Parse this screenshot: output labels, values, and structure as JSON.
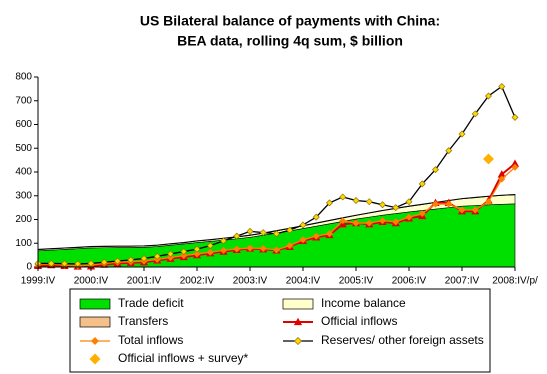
{
  "chart_data": {
    "type": "combo",
    "title": "US Bilateral balance of payments with China:",
    "subtitle": "BEA data, rolling 4q sum, $ billion",
    "categories": [
      "1999:IV",
      null,
      null,
      null,
      "2000:IV",
      null,
      null,
      null,
      "2001:IV",
      null,
      null,
      null,
      "2002:IV",
      null,
      null,
      null,
      "2003:IV",
      null,
      null,
      null,
      "2004:IV",
      null,
      null,
      null,
      "2005:IV",
      null,
      null,
      null,
      "2006:IV",
      null,
      null,
      null,
      "2007:IV",
      null,
      null,
      null,
      "2008:IV/p/"
    ],
    "ylim": [
      0,
      800
    ],
    "yticks": [
      0,
      100,
      200,
      300,
      400,
      500,
      600,
      700,
      800
    ],
    "series": [
      {
        "name": "Trade deficit",
        "kind": "area",
        "color": "#00e000",
        "values": [
          68,
          71,
          74,
          77,
          80,
          81,
          82,
          82,
          83,
          86,
          92,
          97,
          103,
          108,
          113,
          119,
          125,
          134,
          143,
          152,
          162,
          172,
          182,
          192,
          202,
          210,
          218,
          225,
          232,
          238,
          244,
          250,
          256,
          259,
          262,
          264,
          266
        ]
      },
      {
        "name": "Income balance",
        "kind": "area",
        "color": "#ffffcc",
        "values": [
          5,
          5,
          5,
          5,
          5,
          5,
          5,
          5,
          5,
          5,
          5,
          5,
          6,
          6,
          7,
          7,
          8,
          8,
          9,
          10,
          11,
          12,
          13,
          14,
          15,
          17,
          19,
          21,
          23,
          25,
          27,
          29,
          31,
          33,
          35,
          37,
          38
        ]
      },
      {
        "name": "Transfers",
        "kind": "area",
        "color": "#f5c08a",
        "values": [
          2,
          2,
          2,
          2,
          2,
          2,
          2,
          2,
          2,
          2,
          2,
          2,
          2,
          2,
          2,
          2,
          2,
          2,
          2,
          2,
          2,
          2,
          2,
          2,
          2,
          2,
          2,
          2,
          2,
          2,
          2,
          2,
          2,
          2,
          2,
          2,
          2
        ]
      },
      {
        "name": "Official inflows",
        "kind": "line",
        "marker": "triangle",
        "color": "#e00000",
        "values": [
          5,
          8,
          5,
          2,
          3,
          10,
          15,
          18,
          20,
          28,
          35,
          42,
          50,
          58,
          65,
          72,
          78,
          75,
          70,
          85,
          110,
          125,
          135,
          180,
          185,
          180,
          190,
          185,
          205,
          215,
          270,
          270,
          235,
          235,
          280,
          390,
          435
        ]
      },
      {
        "name": "Total inflows",
        "kind": "line",
        "marker": "diamond",
        "color": "#ff8000",
        "values": [
          10,
          12,
          8,
          5,
          8,
          15,
          20,
          22,
          25,
          32,
          40,
          48,
          55,
          62,
          70,
          76,
          80,
          78,
          72,
          90,
          115,
          130,
          140,
          195,
          185,
          185,
          195,
          190,
          210,
          225,
          265,
          265,
          240,
          240,
          275,
          370,
          420
        ]
      },
      {
        "name": "Reserves/ other foreign assets",
        "kind": "line",
        "marker": "diamond",
        "color": "#000000",
        "marker_color": "#ffd700",
        "values": [
          15,
          15,
          14,
          13,
          15,
          20,
          25,
          30,
          36,
          45,
          55,
          65,
          75,
          90,
          110,
          130,
          150,
          145,
          140,
          155,
          177,
          210,
          270,
          295,
          280,
          275,
          262,
          250,
          275,
          350,
          410,
          490,
          560,
          645,
          720,
          760,
          630
        ]
      },
      {
        "name": "Official inflows + survey*",
        "kind": "point",
        "marker": "diamond",
        "color": "#ffb000",
        "values": [
          null,
          null,
          null,
          null,
          null,
          null,
          null,
          null,
          null,
          null,
          null,
          null,
          null,
          null,
          null,
          null,
          null,
          null,
          null,
          null,
          null,
          null,
          null,
          null,
          null,
          null,
          null,
          null,
          null,
          null,
          null,
          null,
          null,
          null,
          455,
          null,
          null
        ]
      }
    ]
  }
}
